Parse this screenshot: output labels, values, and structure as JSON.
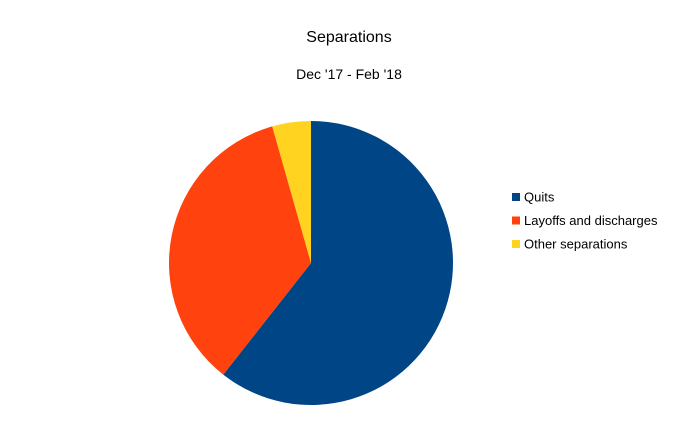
{
  "chart_data": {
    "type": "pie",
    "title": "Separations",
    "subtitle": "Dec '17 - Feb '18",
    "slices": [
      {
        "label": "Quits",
        "value": 60.6,
        "color": "#004586"
      },
      {
        "label": "Layoffs and discharges",
        "value": 35.0,
        "color": "#ff420e"
      },
      {
        "label": "Other separations",
        "value": 4.4,
        "color": "#ffd320"
      }
    ],
    "start_angle_deg": 0,
    "direction": "clockwise",
    "legend_position": "right"
  }
}
